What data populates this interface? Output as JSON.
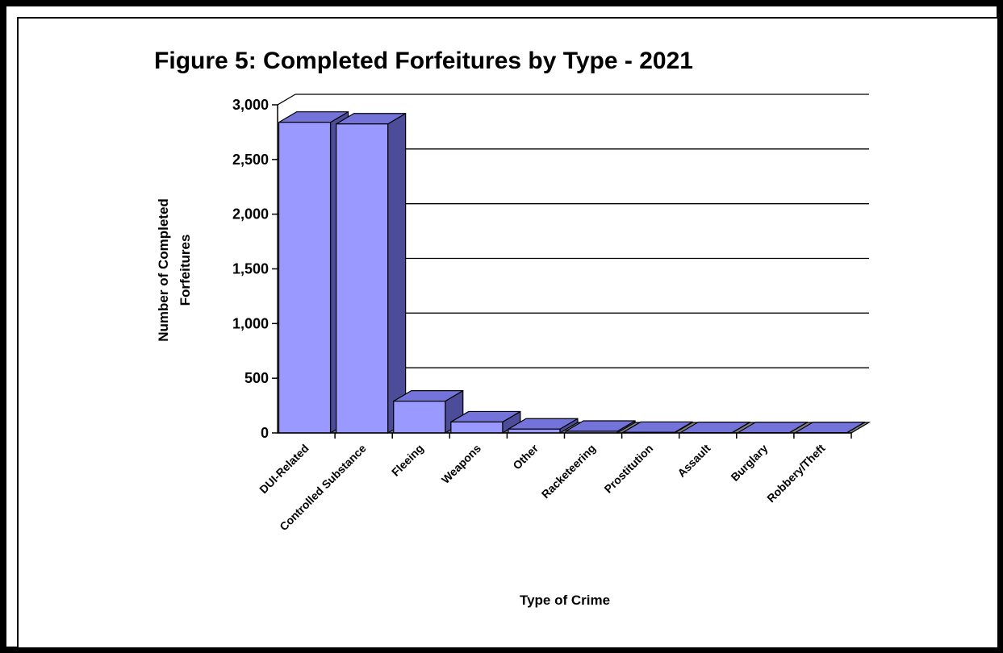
{
  "chart_data": {
    "type": "bar",
    "title": "Figure 5:  Completed Forfeitures by Type - 2021",
    "xlabel": "Type of Crime",
    "ylabel_lines": [
      "Number of Completed",
      "Forfeitures"
    ],
    "categories": [
      "DUI-Related",
      "Controlled Substance",
      "Fleeing",
      "Weapons",
      "Other",
      "Racketeering",
      "Prostitution",
      "Assault",
      "Burglary",
      "Robbery/Theft"
    ],
    "values": [
      2840,
      2825,
      290,
      100,
      35,
      15,
      5,
      3,
      2,
      2
    ],
    "ylim": [
      0,
      3000
    ],
    "yticks": [
      0,
      500,
      1000,
      1500,
      2000,
      2500,
      3000
    ],
    "ytick_labels": [
      "0",
      "500",
      "1,000",
      "1,500",
      "2,000",
      "2,500",
      "3,000"
    ],
    "grid": true,
    "three_d": true,
    "legend": "none",
    "colors": {
      "bar_front": "#9999FF",
      "bar_top": "#7373D9",
      "bar_side": "#4C4C99",
      "floor": "#808080",
      "frame": "#000000"
    }
  }
}
